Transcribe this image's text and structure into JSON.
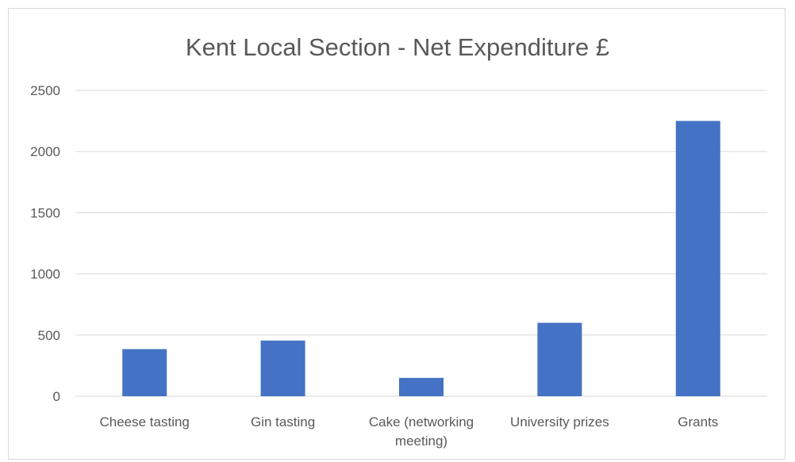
{
  "chart_data": {
    "type": "bar",
    "title": "Kent Local Section - Net Expenditure £",
    "xlabel": "",
    "ylabel": "",
    "categories": [
      [
        "Cheese tasting"
      ],
      [
        "Gin tasting"
      ],
      [
        "Cake (networking",
        "meeting)"
      ],
      [
        "University prizes"
      ],
      [
        "Grants"
      ]
    ],
    "values": [
      385,
      455,
      150,
      600,
      2250
    ],
    "ylim": [
      0,
      2500
    ],
    "yticks": [
      0,
      500,
      1000,
      1500,
      2000,
      2500
    ],
    "grid": true,
    "legend": "none",
    "bar_color": "#4472c4"
  }
}
